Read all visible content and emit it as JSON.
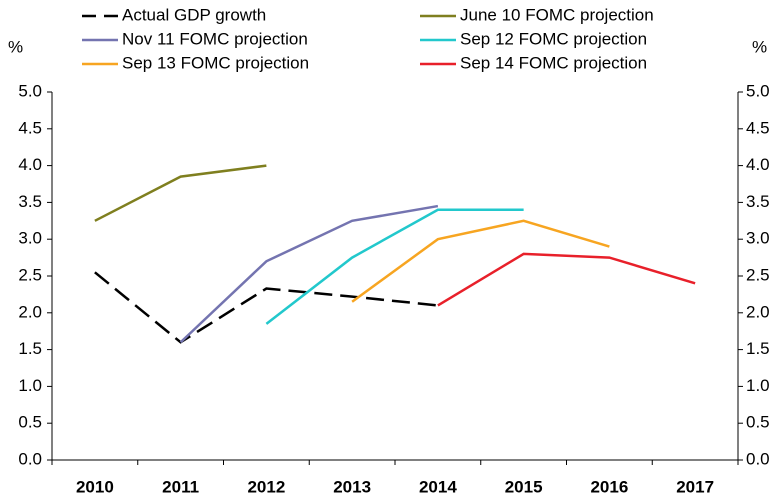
{
  "chart_data": {
    "type": "line",
    "y_label": "%",
    "y2_label": "%",
    "categories": [
      "2010",
      "2011",
      "2012",
      "2013",
      "2014",
      "2015",
      "2016",
      "2017"
    ],
    "series": [
      {
        "name": "Actual GDP growth",
        "color": "#000000",
        "dashed": true,
        "values": [
          2.55,
          1.6,
          2.33,
          2.22,
          2.1,
          null,
          null,
          null
        ]
      },
      {
        "name": "June 10 FOMC projection",
        "color": "#7f7f1f",
        "values": [
          3.25,
          3.85,
          4.0,
          null,
          null,
          null,
          null,
          null
        ]
      },
      {
        "name": "Nov 11 FOMC projection",
        "color": "#7474b0",
        "values": [
          null,
          1.6,
          2.7,
          3.25,
          3.45,
          null,
          null,
          null
        ]
      },
      {
        "name": "Sep 12 FOMC projection",
        "color": "#22c8cc",
        "values": [
          null,
          null,
          1.85,
          2.75,
          3.4,
          3.4,
          null,
          null
        ]
      },
      {
        "name": "Sep 13 FOMC projection",
        "color": "#f7a521",
        "values": [
          null,
          null,
          null,
          2.15,
          3.0,
          3.25,
          2.9,
          null
        ]
      },
      {
        "name": "Sep 14 FOMC projection",
        "color": "#e8202a",
        "values": [
          null,
          null,
          null,
          null,
          2.1,
          2.8,
          2.75,
          2.4
        ]
      }
    ],
    "ylim": [
      0,
      5
    ],
    "yticks": [
      {
        "value": 0,
        "label": "0.0"
      },
      0.5,
      {
        "value": 1,
        "label": "1.0"
      },
      1.5,
      {
        "value": 2,
        "label": "2.0"
      },
      2.5,
      {
        "value": 3,
        "label": "3.0"
      },
      3.5,
      {
        "value": 4,
        "label": "4.0"
      },
      4.5,
      {
        "value": 5,
        "label": "5.0"
      }
    ],
    "y2lim": [
      0,
      5
    ],
    "y2ticks": [
      {
        "value": 0,
        "label": "0.0"
      },
      0.5,
      {
        "value": 1,
        "label": "1.0"
      },
      1.5,
      {
        "value": 2,
        "label": "2.0"
      },
      2.5,
      {
        "value": 3,
        "label": "3.0"
      },
      3.5,
      {
        "value": 4,
        "label": "4.0"
      },
      4.5,
      {
        "value": 5,
        "label": "5.0"
      }
    ]
  }
}
